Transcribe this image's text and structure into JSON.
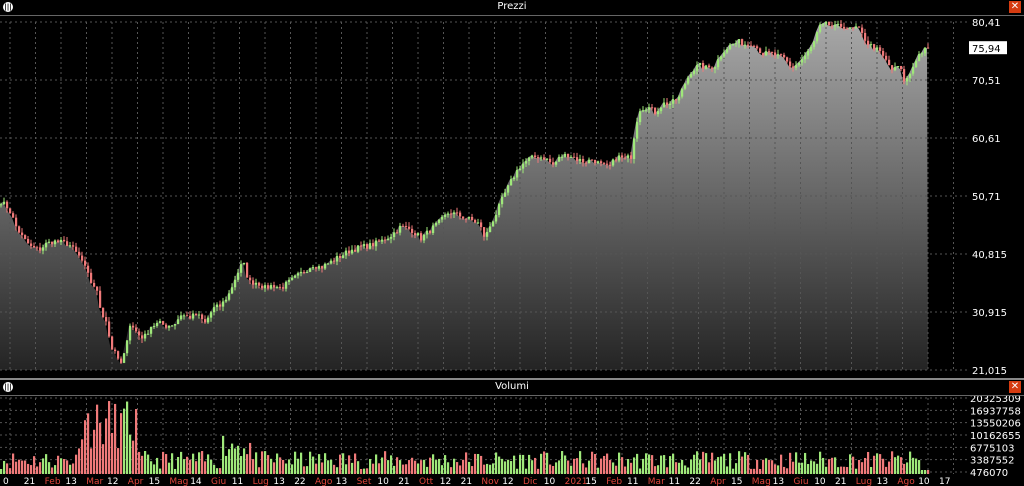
{
  "price_panel": {
    "title": "Prezzi",
    "menu_icon": "menu-icon",
    "close_icon": "close-icon"
  },
  "volume_panel": {
    "title": "Volumi",
    "menu_icon": "menu-icon",
    "close_icon": "close-icon"
  },
  "colors": {
    "up": "#9fe87a",
    "down": "#f07a7a",
    "area_top": "#a8a8a8",
    "area_bottom": "#242424",
    "grid": "#555555",
    "close_close": "#d63b10"
  },
  "chart_data": [
    {
      "type": "candlestick",
      "panel": "price",
      "y_ticks": [
        "80,41",
        "70,51",
        "60,61",
        "50,71",
        "40,815",
        "30,915",
        "21,015"
      ],
      "ylim": [
        21.015,
        80.41
      ],
      "last_price_label": "75,94",
      "series_keypoints": [
        [
          0,
          49.8
        ],
        [
          8,
          48.5
        ],
        [
          15,
          45.5
        ],
        [
          22,
          43.5
        ],
        [
          30,
          42.0
        ],
        [
          38,
          41.5
        ],
        [
          45,
          42.5
        ],
        [
          52,
          43.0
        ],
        [
          60,
          42.8
        ],
        [
          68,
          42.5
        ],
        [
          75,
          41.0
        ],
        [
          80,
          40.0
        ],
        [
          85,
          38.0
        ],
        [
          90,
          36.0
        ],
        [
          95,
          35.0
        ],
        [
          100,
          31.0
        ],
        [
          105,
          29.5
        ],
        [
          110,
          25.0
        ],
        [
          115,
          23.5
        ],
        [
          120,
          22.0
        ],
        [
          124,
          24.0
        ],
        [
          128,
          29.0
        ],
        [
          133,
          28.0
        ],
        [
          138,
          27.0
        ],
        [
          143,
          26.5
        ],
        [
          150,
          28.5
        ],
        [
          158,
          29.0
        ],
        [
          166,
          28.5
        ],
        [
          174,
          29.0
        ],
        [
          180,
          30.5
        ],
        [
          188,
          30.0
        ],
        [
          196,
          30.5
        ],
        [
          204,
          29.0
        ],
        [
          212,
          31.5
        ],
        [
          220,
          32.0
        ],
        [
          228,
          34.0
        ],
        [
          235,
          37.0
        ],
        [
          242,
          39.5
        ],
        [
          248,
          36.0
        ],
        [
          256,
          36.0
        ],
        [
          264,
          35.0
        ],
        [
          272,
          35.5
        ],
        [
          280,
          35.0
        ],
        [
          288,
          36.0
        ],
        [
          296,
          37.0
        ],
        [
          304,
          38.0
        ],
        [
          312,
          39.0
        ],
        [
          320,
          38.5
        ],
        [
          330,
          39.5
        ],
        [
          340,
          40.5
        ],
        [
          350,
          41.5
        ],
        [
          360,
          42.0
        ],
        [
          370,
          42.3
        ],
        [
          380,
          43.0
        ],
        [
          390,
          44.0
        ],
        [
          400,
          45.5
        ],
        [
          410,
          45.0
        ],
        [
          420,
          43.5
        ],
        [
          430,
          45.0
        ],
        [
          440,
          46.5
        ],
        [
          448,
          48.0
        ],
        [
          456,
          47.5
        ],
        [
          464,
          47.0
        ],
        [
          472,
          46.5
        ],
        [
          478,
          46.0
        ],
        [
          484,
          43.5
        ],
        [
          490,
          46.0
        ],
        [
          496,
          48.0
        ],
        [
          502,
          50.5
        ],
        [
          508,
          52.5
        ],
        [
          514,
          54.5
        ],
        [
          520,
          56.0
        ],
        [
          528,
          57.0
        ],
        [
          536,
          57.5
        ],
        [
          544,
          57.2
        ],
        [
          552,
          56.0
        ],
        [
          560,
          57.5
        ],
        [
          568,
          57.8
        ],
        [
          576,
          57.0
        ],
        [
          584,
          56.5
        ],
        [
          592,
          57.0
        ],
        [
          600,
          56.0
        ],
        [
          608,
          55.5
        ],
        [
          616,
          57.5
        ],
        [
          624,
          57.0
        ],
        [
          630,
          57.5
        ],
        [
          634,
          62.0
        ],
        [
          638,
          65.5
        ],
        [
          646,
          66.0
        ],
        [
          654,
          65.0
        ],
        [
          662,
          66.5
        ],
        [
          670,
          66.5
        ],
        [
          678,
          67.5
        ],
        [
          684,
          70.0
        ],
        [
          690,
          72.0
        ],
        [
          698,
          73.0
        ],
        [
          706,
          72.5
        ],
        [
          714,
          73.0
        ],
        [
          722,
          75.5
        ],
        [
          730,
          76.5
        ],
        [
          738,
          77.0
        ],
        [
          746,
          76.5
        ],
        [
          752,
          77.0
        ],
        [
          756,
          76.0
        ],
        [
          762,
          75.0
        ],
        [
          770,
          75.0
        ],
        [
          778,
          74.5
        ],
        [
          784,
          74.0
        ],
        [
          790,
          72.5
        ],
        [
          798,
          73.5
        ],
        [
          806,
          75.0
        ],
        [
          812,
          76.5
        ],
        [
          818,
          79.5
        ],
        [
          826,
          80.0
        ],
        [
          834,
          79.5
        ],
        [
          842,
          79.8
        ],
        [
          850,
          79.0
        ],
        [
          856,
          79.5
        ],
        [
          862,
          78.0
        ],
        [
          868,
          76.5
        ],
        [
          874,
          76.0
        ],
        [
          880,
          75.0
        ],
        [
          886,
          73.5
        ],
        [
          892,
          72.0
        ],
        [
          898,
          73.0
        ],
        [
          904,
          70.0
        ],
        [
          910,
          72.0
        ],
        [
          916,
          74.5
        ],
        [
          922,
          75.5
        ],
        [
          928,
          75.94
        ]
      ]
    },
    {
      "type": "bar",
      "panel": "volume",
      "y_ticks": [
        "20325309",
        "16937758",
        "13550206",
        "10162655",
        "6775103",
        "3387552",
        "476070"
      ],
      "ylim": [
        0,
        20325309
      ],
      "x_tick_labels": [
        {
          "label": "0",
          "highlight": false
        },
        {
          "label": "21",
          "highlight": false
        },
        {
          "label": "Feb",
          "highlight": true
        },
        {
          "label": "13",
          "highlight": false
        },
        {
          "label": "Mar",
          "highlight": true
        },
        {
          "label": "12",
          "highlight": false
        },
        {
          "label": "Apr",
          "highlight": true
        },
        {
          "label": "15",
          "highlight": false
        },
        {
          "label": "Mag",
          "highlight": true
        },
        {
          "label": "14",
          "highlight": false
        },
        {
          "label": "Giu",
          "highlight": true
        },
        {
          "label": "11",
          "highlight": false
        },
        {
          "label": "Lug",
          "highlight": true
        },
        {
          "label": "13",
          "highlight": false
        },
        {
          "label": "22",
          "highlight": false
        },
        {
          "label": "Ago",
          "highlight": true
        },
        {
          "label": "13",
          "highlight": false
        },
        {
          "label": "Set",
          "highlight": true
        },
        {
          "label": "10",
          "highlight": false
        },
        {
          "label": "21",
          "highlight": false
        },
        {
          "label": "Ott",
          "highlight": true
        },
        {
          "label": "12",
          "highlight": false
        },
        {
          "label": "21",
          "highlight": false
        },
        {
          "label": "Nov",
          "highlight": true
        },
        {
          "label": "12",
          "highlight": false
        },
        {
          "label": "Dic",
          "highlight": true
        },
        {
          "label": "10",
          "highlight": false
        },
        {
          "label": "2021",
          "highlight": true
        },
        {
          "label": "15",
          "highlight": false
        },
        {
          "label": "Feb",
          "highlight": true
        },
        {
          "label": "11",
          "highlight": false
        },
        {
          "label": "Mar",
          "highlight": true
        },
        {
          "label": "11",
          "highlight": false
        },
        {
          "label": "22",
          "highlight": false
        },
        {
          "label": "Apr",
          "highlight": true
        },
        {
          "label": "15",
          "highlight": false
        },
        {
          "label": "Mag",
          "highlight": true
        },
        {
          "label": "13",
          "highlight": false
        },
        {
          "label": "Giu",
          "highlight": true
        },
        {
          "label": "10",
          "highlight": false
        },
        {
          "label": "21",
          "highlight": false
        },
        {
          "label": "Lug",
          "highlight": true
        },
        {
          "label": "13",
          "highlight": false
        },
        {
          "label": "Ago",
          "highlight": true
        },
        {
          "label": "10",
          "highlight": false
        },
        {
          "label": "17",
          "highlight": false
        }
      ]
    }
  ]
}
